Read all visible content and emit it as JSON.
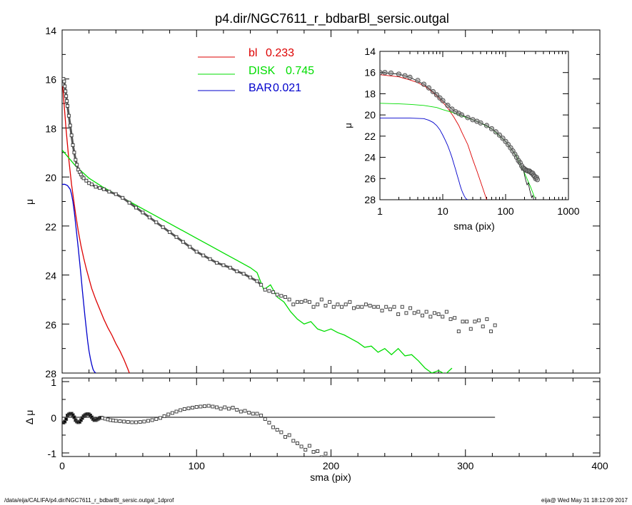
{
  "title": "p4.dir/NGC7611_r_bdbarBl_sersic.outgal",
  "footer": {
    "left": "/data/eija/CALIFA/p4.dir/NGC7611_r_bdbarBl_sersic.outgal_1dprof",
    "right": "eija@  Wed May 31 18:12:09 2017"
  },
  "colors": {
    "bl": "#dd0000",
    "disk": "#00dd00",
    "bar": "#0000cc",
    "data": "#555555",
    "axis": "#000000"
  },
  "chart_data": [
    {
      "id": "main",
      "type": "scatter",
      "xlabel": "",
      "ylabel": "μ",
      "xlim": [
        0,
        400
      ],
      "ylim": [
        28,
        14
      ],
      "yticks": [
        "14",
        "16",
        "18",
        "20",
        "22",
        "24",
        "26",
        "28"
      ],
      "legend": [
        {
          "label": "bl",
          "value": "0.233",
          "color": "#dd0000"
        },
        {
          "label": "DISK",
          "value": "0.745",
          "color": "#00dd00"
        },
        {
          "label": "BAR",
          "value": "0.021",
          "color": "#0000cc"
        }
      ],
      "observed": {
        "x": [
          0.5,
          1,
          1.5,
          2,
          2.5,
          3,
          3.5,
          4,
          5,
          6,
          7,
          8,
          9,
          10,
          11,
          12,
          13,
          14,
          15,
          16,
          18,
          20,
          22,
          25,
          28,
          31,
          35,
          40,
          45,
          50,
          55,
          60,
          65,
          70,
          75,
          80,
          85,
          90,
          95,
          100,
          105,
          110,
          115,
          120,
          125,
          130,
          135,
          140,
          145,
          148,
          151,
          154,
          157,
          160,
          163,
          166,
          169,
          172,
          175,
          178,
          181,
          184,
          187,
          190,
          193,
          196,
          199,
          202,
          205,
          208,
          211,
          214,
          217,
          220,
          223,
          226,
          229,
          232,
          235,
          238,
          241,
          244,
          247,
          250,
          253,
          256,
          259,
          262,
          265,
          268,
          271,
          274,
          277,
          280,
          283,
          286,
          289,
          292,
          295,
          298,
          301,
          304,
          307,
          310,
          313,
          316,
          319,
          322
        ],
        "y": [
          16.0,
          16.0,
          16.1,
          16.3,
          16.5,
          16.7,
          16.9,
          17.1,
          17.5,
          17.9,
          18.3,
          18.7,
          19.0,
          19.3,
          19.5,
          19.7,
          19.8,
          19.9,
          20.0,
          20.05,
          20.15,
          20.25,
          20.3,
          20.4,
          20.45,
          20.5,
          20.6,
          20.7,
          20.85,
          21.05,
          21.25,
          21.45,
          21.65,
          21.85,
          22.05,
          22.25,
          22.45,
          22.65,
          22.85,
          23.05,
          23.2,
          23.35,
          23.5,
          23.6,
          23.7,
          23.85,
          23.95,
          24.1,
          24.25,
          24.4,
          24.6,
          24.65,
          24.7,
          24.8,
          24.85,
          24.9,
          25.0,
          25.2,
          25.1,
          25.1,
          25.05,
          25.1,
          25.3,
          25.2,
          25.0,
          25.25,
          25.1,
          25.3,
          25.2,
          25.3,
          25.2,
          25.1,
          25.35,
          25.3,
          25.3,
          25.2,
          25.25,
          25.3,
          25.3,
          25.45,
          25.3,
          25.4,
          25.3,
          25.6,
          25.3,
          25.55,
          25.35,
          25.55,
          25.5,
          25.65,
          25.5,
          25.7,
          25.55,
          25.6,
          25.7,
          25.5,
          25.8,
          25.75,
          26.3,
          25.9,
          25.9,
          26.2,
          25.9,
          25.85,
          26.1,
          25.8,
          26.3,
          26.05
        ]
      },
      "series": [
        {
          "name": "bl",
          "color": "#dd0000",
          "x": [
            0.5,
            1,
            2,
            3,
            4,
            5,
            6,
            7,
            8,
            10,
            12,
            14,
            16,
            18,
            20,
            22,
            25,
            28,
            31,
            34,
            37,
            40,
            43,
            46,
            49,
            50
          ],
          "y": [
            16.3,
            16.7,
            17.4,
            18.1,
            18.7,
            19.3,
            19.8,
            20.3,
            20.7,
            21.5,
            22.2,
            22.8,
            23.3,
            23.75,
            24.15,
            24.55,
            25.0,
            25.4,
            25.8,
            26.15,
            26.45,
            26.8,
            27.1,
            27.45,
            27.85,
            28.0
          ]
        },
        {
          "name": "DISK",
          "color": "#00dd00",
          "x": [
            0,
            10,
            20,
            30,
            40,
            50,
            60,
            70,
            80,
            90,
            100,
            110,
            120,
            130,
            140,
            145,
            150,
            155,
            160,
            165,
            170,
            175,
            180,
            185,
            190,
            195,
            200,
            205,
            210,
            215,
            220,
            225,
            230,
            235,
            240,
            245,
            250,
            255,
            260,
            265,
            270,
            275,
            280,
            285,
            290
          ],
          "y": [
            18.9,
            19.55,
            20.05,
            20.4,
            20.7,
            21.0,
            21.3,
            21.6,
            21.9,
            22.2,
            22.5,
            22.8,
            23.1,
            23.4,
            23.7,
            23.9,
            24.6,
            24.4,
            24.9,
            25.1,
            25.5,
            25.8,
            26.0,
            25.9,
            26.2,
            26.3,
            26.2,
            26.35,
            26.45,
            26.6,
            26.75,
            26.95,
            26.9,
            27.15,
            27.0,
            27.25,
            27.0,
            27.3,
            27.25,
            27.5,
            27.8,
            28.0,
            27.9,
            28.05,
            27.8
          ]
        },
        {
          "name": "BAR",
          "color": "#0000cc",
          "x": [
            0,
            2,
            4,
            6,
            7,
            8,
            9,
            10,
            11,
            12,
            13,
            14,
            15,
            16,
            17,
            18,
            19,
            20,
            21,
            22,
            23,
            24,
            25
          ],
          "y": [
            20.3,
            20.3,
            20.35,
            20.5,
            20.7,
            21.0,
            21.4,
            21.9,
            22.4,
            22.9,
            23.45,
            24.0,
            24.6,
            25.15,
            25.7,
            26.2,
            26.7,
            27.1,
            27.4,
            27.65,
            27.85,
            27.95,
            28.0
          ]
        }
      ]
    },
    {
      "id": "residual",
      "type": "scatter",
      "xlabel": "sma (pix)",
      "ylabel": "Δ μ",
      "xlim": [
        0,
        400
      ],
      "ylim": [
        -1.1,
        1.1
      ],
      "yticks": [
        "1",
        "0",
        "-1"
      ],
      "xticks": [
        "0",
        "100",
        "200",
        "300",
        "400"
      ],
      "reference_line": {
        "y": 0,
        "x_end": 322
      },
      "residuals": {
        "x": [
          1,
          2,
          3,
          4,
          5,
          6,
          7,
          8,
          9,
          10,
          11,
          12,
          13,
          14,
          15,
          16,
          17,
          18,
          19,
          20,
          21,
          22,
          23,
          24,
          25,
          26,
          27,
          28,
          29,
          30,
          32,
          34,
          36,
          38,
          40,
          43,
          46,
          49,
          52,
          55,
          58,
          61,
          64,
          67,
          70,
          73,
          76,
          79,
          82,
          85,
          88,
          91,
          94,
          97,
          100,
          103,
          106,
          109,
          112,
          115,
          118,
          121,
          124,
          127,
          130,
          133,
          136,
          139,
          142,
          145,
          148,
          151,
          154,
          157,
          160,
          163,
          166,
          169,
          172,
          175,
          178,
          181,
          184,
          187,
          190,
          193,
          196
        ],
        "y": [
          -0.15,
          -0.12,
          -0.05,
          0.05,
          0.08,
          0.1,
          0.1,
          0.06,
          0.0,
          -0.08,
          -0.12,
          -0.14,
          -0.13,
          -0.08,
          -0.02,
          0.03,
          0.06,
          0.08,
          0.09,
          0.08,
          0.05,
          0.0,
          -0.05,
          -0.08,
          -0.08,
          -0.06,
          -0.04,
          -0.02,
          -0.01,
          -0.02,
          -0.04,
          -0.06,
          -0.08,
          -0.09,
          -0.1,
          -0.11,
          -0.12,
          -0.13,
          -0.14,
          -0.14,
          -0.13,
          -0.12,
          -0.1,
          -0.08,
          -0.05,
          -0.02,
          0.03,
          0.08,
          0.12,
          0.16,
          0.2,
          0.23,
          0.25,
          0.27,
          0.29,
          0.3,
          0.31,
          0.32,
          0.3,
          0.28,
          0.24,
          0.28,
          0.24,
          0.27,
          0.21,
          0.16,
          0.18,
          0.13,
          0.1,
          0.1,
          0.05,
          -0.05,
          -0.15,
          -0.28,
          -0.35,
          -0.42,
          -0.55,
          -0.5,
          -0.66,
          -0.73,
          -0.82,
          -0.91,
          -0.8,
          -0.97,
          -0.95,
          -1.12,
          -1.02
        ]
      }
    },
    {
      "id": "inset",
      "type": "scatter",
      "xscale": "log",
      "xlabel": "sma (pix)",
      "ylabel": "μ",
      "xlim": [
        1,
        1000
      ],
      "ylim": [
        28,
        14
      ],
      "xticks": [
        "1",
        "10",
        "100",
        "1000"
      ],
      "yticks": [
        "14",
        "16",
        "18",
        "20",
        "22",
        "24",
        "26",
        "28"
      ],
      "observed": {
        "x": [
          1,
          1.2,
          1.5,
          2,
          2.5,
          3,
          4,
          5,
          6,
          7,
          8,
          9,
          10,
          12,
          14,
          16,
          18,
          20,
          25,
          30,
          35,
          40,
          50,
          60,
          70,
          80,
          90,
          100,
          110,
          120,
          130,
          140,
          150,
          160,
          170,
          180,
          190,
          200,
          210,
          220,
          230,
          240,
          250,
          260,
          270,
          280,
          290,
          300,
          310,
          320
        ],
        "y": [
          16.0,
          16.0,
          16.05,
          16.15,
          16.3,
          16.45,
          16.75,
          17.1,
          17.45,
          17.8,
          18.1,
          18.4,
          18.65,
          19.1,
          19.45,
          19.7,
          19.85,
          20.0,
          20.25,
          20.45,
          20.6,
          20.75,
          21.0,
          21.3,
          21.6,
          21.9,
          22.2,
          22.5,
          22.8,
          23.1,
          23.4,
          23.7,
          24.0,
          24.3,
          24.5,
          24.8,
          25.0,
          25.1,
          25.2,
          25.25,
          25.3,
          25.3,
          25.4,
          25.5,
          25.5,
          25.7,
          25.8,
          26.0,
          25.9,
          26.1
        ]
      },
      "profile": {
        "x": [
          1,
          2,
          3,
          5,
          8,
          10,
          15,
          20,
          30,
          50,
          70,
          100,
          130,
          150,
          160,
          170,
          180,
          190,
          200,
          210,
          220,
          230,
          240,
          250,
          260,
          270,
          280
        ],
        "y": [
          16.0,
          16.15,
          16.45,
          17.1,
          18.1,
          18.65,
          19.6,
          20.0,
          20.45,
          21.0,
          21.6,
          22.5,
          23.4,
          24.0,
          24.6,
          24.4,
          25.2,
          24.9,
          25.7,
          26.2,
          26.6,
          26.4,
          27.0,
          27.4,
          27.8,
          27.6,
          28.0
        ]
      },
      "series": [
        {
          "name": "bl",
          "color": "#dd0000",
          "x": [
            1,
            2,
            3,
            4,
            5,
            6,
            8,
            10,
            12,
            15,
            18,
            20,
            25,
            30,
            35,
            40,
            45,
            50
          ],
          "y": [
            16.2,
            16.4,
            16.7,
            16.95,
            17.25,
            17.55,
            18.2,
            18.8,
            19.35,
            20.2,
            21.0,
            21.6,
            22.8,
            24.2,
            25.3,
            26.3,
            27.2,
            28.0
          ]
        },
        {
          "name": "DISK",
          "color": "#00dd00",
          "x": [
            1,
            2,
            3,
            5,
            8,
            10,
            15,
            20,
            30,
            40,
            60,
            100,
            150,
            200,
            250,
            290
          ],
          "y": [
            18.9,
            18.95,
            19.0,
            19.1,
            19.3,
            19.5,
            19.8,
            20.1,
            20.45,
            20.75,
            21.3,
            22.5,
            23.9,
            25.5,
            26.8,
            27.8
          ]
        },
        {
          "name": "BAR",
          "color": "#0000cc",
          "x": [
            1,
            3,
            5,
            6,
            7,
            8,
            9,
            10,
            11,
            12,
            13,
            14,
            15,
            16,
            17,
            18,
            19,
            20,
            21,
            22,
            23,
            24,
            25
          ],
          "y": [
            20.3,
            20.3,
            20.35,
            20.5,
            20.7,
            21.0,
            21.4,
            21.9,
            22.4,
            22.9,
            23.45,
            24.0,
            24.6,
            25.15,
            25.7,
            26.2,
            26.7,
            27.1,
            27.4,
            27.65,
            27.85,
            27.95,
            28.0
          ]
        }
      ]
    }
  ]
}
